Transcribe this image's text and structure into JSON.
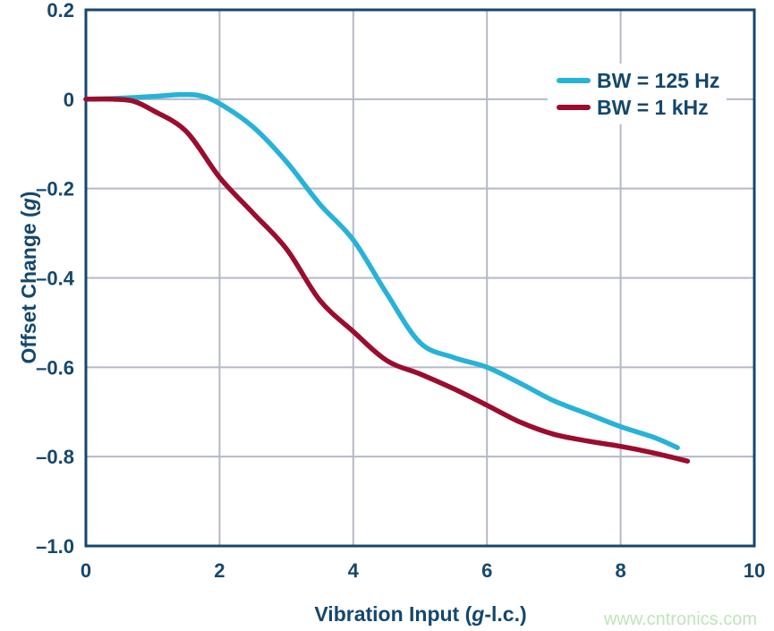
{
  "watermark": "www.cntronics.com",
  "colors": {
    "axis_navy": "#14476e",
    "grid": "#b4b8c8",
    "background": "#ffffff",
    "watermark_green": "#bfe5ba",
    "series_cyan": "#28b2d8",
    "series_crimson": "#9b0d2d"
  },
  "chart_data": {
    "type": "line",
    "title": "",
    "xlabel": {
      "prefix": "Vibration Input (",
      "italic": "g",
      "suffix": "-l.c.)"
    },
    "ylabel": {
      "prefix": "Offset Change (",
      "italic": "g",
      "suffix": ")"
    },
    "xlim": [
      0,
      10
    ],
    "ylim": [
      -1.0,
      0.2
    ],
    "grid": true,
    "legend_position": "top-right",
    "xticks": [
      {
        "v": 0,
        "label": "0"
      },
      {
        "v": 2,
        "label": "2"
      },
      {
        "v": 4,
        "label": "4"
      },
      {
        "v": 6,
        "label": "6"
      },
      {
        "v": 8,
        "label": "8"
      },
      {
        "v": 10,
        "label": "10"
      }
    ],
    "yticks": [
      {
        "v": 0.2,
        "label": "0.2"
      },
      {
        "v": 0,
        "label": "0"
      },
      {
        "v": -0.2,
        "label": "–0.2"
      },
      {
        "v": -0.4,
        "label": "–0.4"
      },
      {
        "v": -0.6,
        "label": "–0.6"
      },
      {
        "v": -0.8,
        "label": "–0.8"
      },
      {
        "v": -1.0,
        "label": "–1.0"
      }
    ],
    "series": [
      {
        "name": "BW = 125 Hz",
        "color": "#28b2d8",
        "points": [
          [
            0,
            0
          ],
          [
            0.5,
            0.002
          ],
          [
            1.0,
            0.006
          ],
          [
            1.4,
            0.01
          ],
          [
            1.7,
            0.008
          ],
          [
            2.0,
            -0.01
          ],
          [
            2.5,
            -0.062
          ],
          [
            3.0,
            -0.14
          ],
          [
            3.5,
            -0.235
          ],
          [
            4.0,
            -0.315
          ],
          [
            4.5,
            -0.435
          ],
          [
            5.0,
            -0.545
          ],
          [
            5.5,
            -0.578
          ],
          [
            6.0,
            -0.6
          ],
          [
            6.5,
            -0.636
          ],
          [
            7.0,
            -0.675
          ],
          [
            7.5,
            -0.704
          ],
          [
            8.0,
            -0.733
          ],
          [
            8.5,
            -0.757
          ],
          [
            8.85,
            -0.78
          ]
        ]
      },
      {
        "name": "BW = 1 kHz",
        "color": "#9b0d2d",
        "points": [
          [
            0,
            0
          ],
          [
            0.4,
            0
          ],
          [
            0.7,
            -0.004
          ],
          [
            1.0,
            -0.025
          ],
          [
            1.5,
            -0.072
          ],
          [
            2.0,
            -0.175
          ],
          [
            2.5,
            -0.255
          ],
          [
            3.0,
            -0.335
          ],
          [
            3.5,
            -0.45
          ],
          [
            4.0,
            -0.52
          ],
          [
            4.5,
            -0.585
          ],
          [
            5.0,
            -0.615
          ],
          [
            5.5,
            -0.648
          ],
          [
            6.0,
            -0.685
          ],
          [
            6.5,
            -0.723
          ],
          [
            7.0,
            -0.75
          ],
          [
            7.5,
            -0.765
          ],
          [
            8.0,
            -0.777
          ],
          [
            8.5,
            -0.792
          ],
          [
            9.0,
            -0.81
          ]
        ]
      }
    ]
  }
}
